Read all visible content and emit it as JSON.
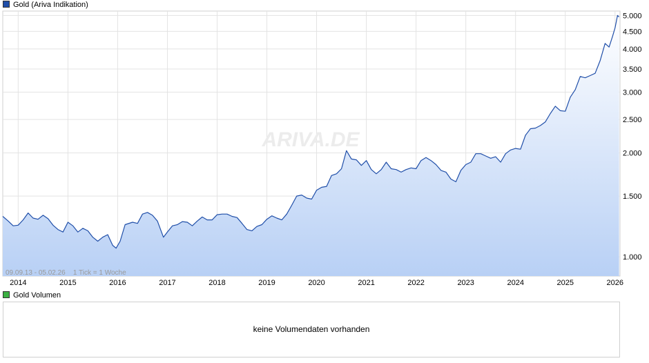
{
  "legend": {
    "main_label": "Gold (Ariva Indikation)",
    "main_color": "#1f4ea8",
    "volume_label": "Gold Volumen",
    "volume_color": "#3cb043"
  },
  "watermark": "ARIVA.DE",
  "info_line": "09.09.13 - 05.02.26    1 Tick = 1 Woche",
  "volume_panel": {
    "message": "keine Volumendaten vorhanden"
  },
  "chart_data": {
    "type": "area",
    "title": "Gold (Ariva Indikation)",
    "yscale": "log",
    "ylim": [
      880,
      5150
    ],
    "xlim": [
      2013.69,
      2026.1
    ],
    "y_ticks": [
      {
        "value": 1000,
        "label": "1.000"
      },
      {
        "value": 1500,
        "label": "1.500"
      },
      {
        "value": 2000,
        "label": "2.000"
      },
      {
        "value": 2500,
        "label": "2.500"
      },
      {
        "value": 3000,
        "label": "3.000"
      },
      {
        "value": 3500,
        "label": "3.500"
      },
      {
        "value": 4000,
        "label": "4.000"
      },
      {
        "value": 4500,
        "label": "4.500"
      },
      {
        "value": 5000,
        "label": "5.000"
      }
    ],
    "x_ticks": [
      {
        "value": 2014,
        "label": "2014"
      },
      {
        "value": 2015,
        "label": "2015"
      },
      {
        "value": 2016,
        "label": "2016"
      },
      {
        "value": 2017,
        "label": "2017"
      },
      {
        "value": 2018,
        "label": "2018"
      },
      {
        "value": 2019,
        "label": "2019"
      },
      {
        "value": 2020,
        "label": "2020"
      },
      {
        "value": 2021,
        "label": "2021"
      },
      {
        "value": 2022,
        "label": "2022"
      },
      {
        "value": 2023,
        "label": "2023"
      },
      {
        "value": 2024,
        "label": "2024"
      },
      {
        "value": 2025,
        "label": "2025"
      },
      {
        "value": 2026,
        "label": "2026"
      }
    ],
    "grid": true,
    "series": [
      {
        "name": "Gold (Ariva Indikation)",
        "color": "#1f4ea8",
        "points": [
          [
            2013.69,
            1310
          ],
          [
            2013.8,
            1270
          ],
          [
            2013.9,
            1230
          ],
          [
            2014.0,
            1235
          ],
          [
            2014.1,
            1280
          ],
          [
            2014.2,
            1340
          ],
          [
            2014.3,
            1295
          ],
          [
            2014.4,
            1285
          ],
          [
            2014.5,
            1320
          ],
          [
            2014.6,
            1290
          ],
          [
            2014.7,
            1235
          ],
          [
            2014.8,
            1200
          ],
          [
            2014.9,
            1180
          ],
          [
            2015.0,
            1260
          ],
          [
            2015.1,
            1230
          ],
          [
            2015.2,
            1180
          ],
          [
            2015.3,
            1210
          ],
          [
            2015.4,
            1190
          ],
          [
            2015.5,
            1140
          ],
          [
            2015.6,
            1110
          ],
          [
            2015.7,
            1140
          ],
          [
            2015.8,
            1160
          ],
          [
            2015.9,
            1080
          ],
          [
            2015.97,
            1060
          ],
          [
            2016.05,
            1110
          ],
          [
            2016.15,
            1240
          ],
          [
            2016.3,
            1260
          ],
          [
            2016.4,
            1250
          ],
          [
            2016.5,
            1330
          ],
          [
            2016.6,
            1345
          ],
          [
            2016.7,
            1320
          ],
          [
            2016.8,
            1270
          ],
          [
            2016.92,
            1140
          ],
          [
            2017.0,
            1180
          ],
          [
            2017.1,
            1230
          ],
          [
            2017.2,
            1240
          ],
          [
            2017.3,
            1265
          ],
          [
            2017.4,
            1260
          ],
          [
            2017.5,
            1230
          ],
          [
            2017.6,
            1270
          ],
          [
            2017.7,
            1305
          ],
          [
            2017.8,
            1280
          ],
          [
            2017.9,
            1280
          ],
          [
            2018.0,
            1325
          ],
          [
            2018.1,
            1330
          ],
          [
            2018.2,
            1330
          ],
          [
            2018.3,
            1310
          ],
          [
            2018.4,
            1300
          ],
          [
            2018.5,
            1250
          ],
          [
            2018.6,
            1200
          ],
          [
            2018.7,
            1190
          ],
          [
            2018.8,
            1225
          ],
          [
            2018.9,
            1240
          ],
          [
            2019.0,
            1285
          ],
          [
            2019.1,
            1315
          ],
          [
            2019.2,
            1295
          ],
          [
            2019.3,
            1280
          ],
          [
            2019.4,
            1330
          ],
          [
            2019.5,
            1410
          ],
          [
            2019.6,
            1500
          ],
          [
            2019.7,
            1510
          ],
          [
            2019.8,
            1480
          ],
          [
            2019.9,
            1470
          ],
          [
            2020.0,
            1560
          ],
          [
            2020.1,
            1590
          ],
          [
            2020.2,
            1600
          ],
          [
            2020.3,
            1720
          ],
          [
            2020.4,
            1740
          ],
          [
            2020.5,
            1800
          ],
          [
            2020.6,
            2030
          ],
          [
            2020.7,
            1920
          ],
          [
            2020.8,
            1910
          ],
          [
            2020.9,
            1840
          ],
          [
            2021.0,
            1900
          ],
          [
            2021.1,
            1790
          ],
          [
            2021.2,
            1740
          ],
          [
            2021.3,
            1790
          ],
          [
            2021.4,
            1880
          ],
          [
            2021.5,
            1800
          ],
          [
            2021.6,
            1790
          ],
          [
            2021.7,
            1760
          ],
          [
            2021.8,
            1790
          ],
          [
            2021.9,
            1810
          ],
          [
            2022.0,
            1800
          ],
          [
            2022.1,
            1900
          ],
          [
            2022.2,
            1940
          ],
          [
            2022.3,
            1900
          ],
          [
            2022.4,
            1850
          ],
          [
            2022.5,
            1780
          ],
          [
            2022.6,
            1760
          ],
          [
            2022.7,
            1680
          ],
          [
            2022.8,
            1650
          ],
          [
            2022.9,
            1780
          ],
          [
            2023.0,
            1850
          ],
          [
            2023.1,
            1880
          ],
          [
            2023.2,
            1990
          ],
          [
            2023.3,
            1990
          ],
          [
            2023.4,
            1960
          ],
          [
            2023.5,
            1930
          ],
          [
            2023.6,
            1950
          ],
          [
            2023.7,
            1880
          ],
          [
            2023.8,
            1990
          ],
          [
            2023.9,
            2040
          ],
          [
            2024.0,
            2060
          ],
          [
            2024.1,
            2050
          ],
          [
            2024.2,
            2250
          ],
          [
            2024.3,
            2350
          ],
          [
            2024.4,
            2360
          ],
          [
            2024.5,
            2400
          ],
          [
            2024.6,
            2460
          ],
          [
            2024.7,
            2600
          ],
          [
            2024.8,
            2730
          ],
          [
            2024.9,
            2650
          ],
          [
            2025.0,
            2640
          ],
          [
            2025.1,
            2900
          ],
          [
            2025.2,
            3050
          ],
          [
            2025.3,
            3330
          ],
          [
            2025.4,
            3300
          ],
          [
            2025.5,
            3350
          ],
          [
            2025.6,
            3400
          ],
          [
            2025.7,
            3700
          ],
          [
            2025.8,
            4150
          ],
          [
            2025.88,
            4050
          ],
          [
            2025.95,
            4350
          ],
          [
            2026.0,
            4600
          ],
          [
            2026.05,
            5000
          ],
          [
            2026.08,
            4950
          ]
        ]
      }
    ]
  }
}
